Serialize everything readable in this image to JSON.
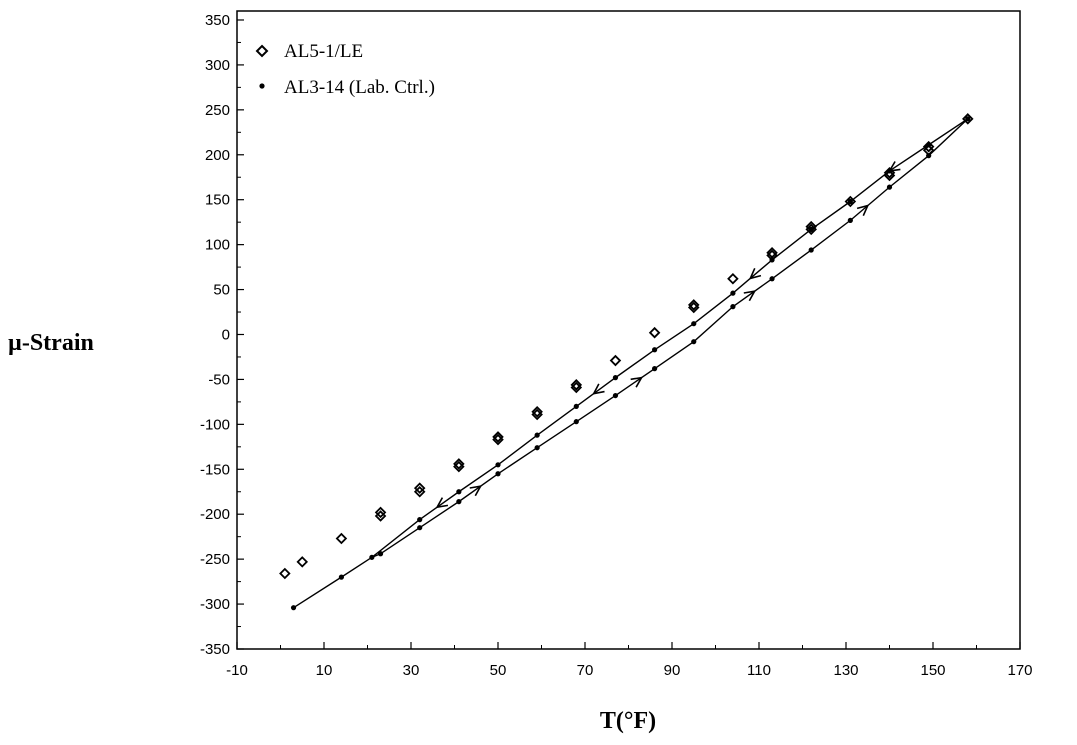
{
  "chart_data": {
    "type": "scatter",
    "title": "",
    "xlabel": "T(°F)",
    "ylabel": "µ-Strain",
    "xlim": [
      -10,
      170
    ],
    "ylim": [
      -350,
      360
    ],
    "x_ticks": [
      "-10",
      "10",
      "30",
      "50",
      "70",
      "90",
      "110",
      "130",
      "150",
      "170"
    ],
    "y_ticks": [
      "350",
      "300",
      "250",
      "200",
      "150",
      "100",
      "50",
      "0",
      "-50",
      "-100",
      "-150",
      "-200",
      "-250",
      "-300",
      "-350"
    ],
    "legend_position": "top-left",
    "grid": false,
    "series": [
      {
        "name": "AL5-1/LE",
        "marker": "open-diamond",
        "points": [
          [
            1,
            -266
          ],
          [
            5,
            -253
          ],
          [
            14,
            -227
          ],
          [
            23,
            -198
          ],
          [
            23,
            -202
          ],
          [
            32,
            -171
          ],
          [
            32,
            -175
          ],
          [
            41,
            -144
          ],
          [
            41,
            -147
          ],
          [
            50,
            -114
          ],
          [
            50,
            -117
          ],
          [
            59,
            -86
          ],
          [
            59,
            -89
          ],
          [
            68,
            -56
          ],
          [
            68,
            -59
          ],
          [
            77,
            -29
          ],
          [
            86,
            2
          ],
          [
            95,
            30
          ],
          [
            95,
            33
          ],
          [
            104,
            62
          ],
          [
            113,
            88
          ],
          [
            113,
            91
          ],
          [
            122,
            117
          ],
          [
            122,
            120
          ],
          [
            131,
            148
          ],
          [
            140,
            177
          ],
          [
            140,
            180
          ],
          [
            149,
            205
          ],
          [
            149,
            209
          ],
          [
            158,
            240
          ]
        ]
      },
      {
        "name": "AL3-14 (Lab. Ctrl.)",
        "marker": "dot",
        "heating": [
          [
            3,
            -304
          ],
          [
            14,
            -270
          ],
          [
            21,
            -248
          ],
          [
            23,
            -244
          ],
          [
            32,
            -215
          ],
          [
            41,
            -186
          ],
          [
            50,
            -155
          ],
          [
            59,
            -126
          ],
          [
            68,
            -97
          ],
          [
            77,
            -68
          ],
          [
            86,
            -38
          ],
          [
            95,
            -8
          ],
          [
            104,
            31
          ],
          [
            113,
            62
          ],
          [
            122,
            94
          ],
          [
            131,
            127
          ],
          [
            140,
            164
          ],
          [
            149,
            199
          ],
          [
            158,
            240
          ]
        ],
        "cooling": [
          [
            158,
            240
          ],
          [
            149,
            211
          ],
          [
            140,
            182
          ],
          [
            131,
            148
          ],
          [
            122,
            117
          ],
          [
            113,
            83
          ],
          [
            104,
            46
          ],
          [
            95,
            12
          ],
          [
            86,
            -17
          ],
          [
            77,
            -48
          ],
          [
            68,
            -80
          ],
          [
            59,
            -112
          ],
          [
            50,
            -145
          ],
          [
            41,
            -175
          ],
          [
            32,
            -206
          ],
          [
            21,
            -248
          ]
        ],
        "heating_arrows_at": [
          46,
          83,
          109,
          135
        ],
        "cooling_arrows_at": [
          140,
          108,
          72,
          36
        ]
      }
    ]
  }
}
